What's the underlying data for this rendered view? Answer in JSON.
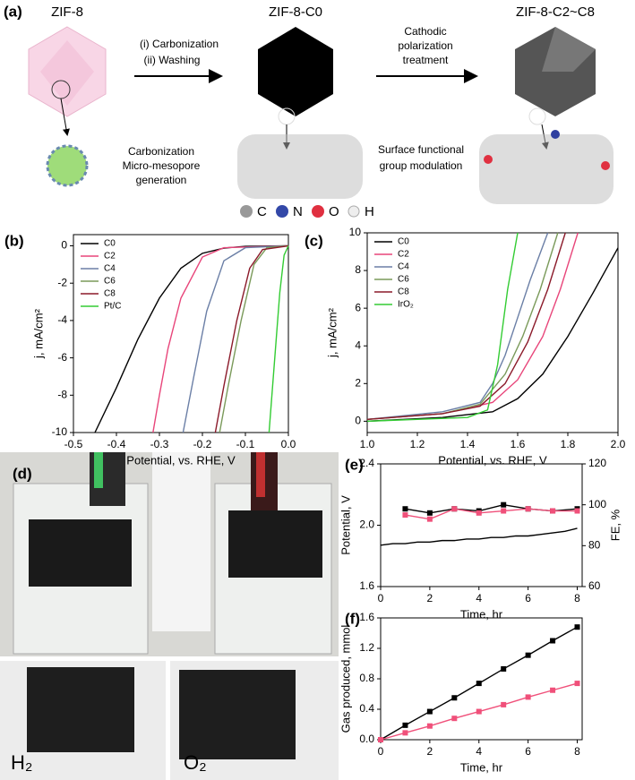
{
  "figure_a": {
    "label": "(a)",
    "stage1": "ZIF-8",
    "stage2": "ZIF-8-C0",
    "stage3": "ZIF-8-C2~C8",
    "step1a": "(i) Carbonization",
    "step1b": "(ii) Washing",
    "step2a": "Cathodic",
    "step2b": "polarization",
    "step2c": "treatment",
    "note1a": "Carbonization",
    "note1b": "Micro-mesopore",
    "note1c": "generation",
    "note2a": "Surface functional",
    "note2b": "group modulation",
    "atoms": [
      "C",
      "N",
      "O",
      "H"
    ]
  },
  "figure_d": {
    "label": "(d)",
    "left": "H₂",
    "right": "O₂"
  },
  "chart_data": [
    {
      "type": "line",
      "label": "(b)",
      "xlabel": "Potential, vs. RHE, V",
      "ylabel": "j, mA/cm²",
      "xlim": [
        -0.5,
        0.0
      ],
      "xticks": [
        -0.5,
        -0.4,
        -0.3,
        -0.2,
        -0.1,
        {
          "value": 0,
          "label": "0.0"
        }
      ],
      "ylim": [
        -10,
        0.6
      ],
      "yticks": [
        0,
        -2,
        -4,
        -6,
        -8,
        -10
      ],
      "legend": "upper left",
      "series": [
        {
          "name": "C0",
          "color": "#000000",
          "x": [
            -0.45,
            -0.4,
            -0.35,
            -0.3,
            -0.25,
            -0.2,
            -0.15,
            -0.1,
            0.0
          ],
          "values": [
            -10,
            -7.6,
            -5.0,
            -2.8,
            -1.2,
            -0.4,
            -0.12,
            -0.03,
            0
          ]
        },
        {
          "name": "C2",
          "color": "#e8457a",
          "x": [
            -0.315,
            -0.3,
            -0.28,
            -0.25,
            -0.2,
            -0.15,
            0.0
          ],
          "values": [
            -10,
            -8,
            -5.5,
            -2.8,
            -0.6,
            -0.1,
            0
          ]
        },
        {
          "name": "C4",
          "color": "#6b7fa6",
          "x": [
            -0.245,
            -0.22,
            -0.19,
            -0.15,
            -0.1,
            0.0
          ],
          "values": [
            -10,
            -7,
            -3.5,
            -0.8,
            -0.1,
            0
          ]
        },
        {
          "name": "C6",
          "color": "#7a9a5a",
          "x": [
            -0.16,
            -0.14,
            -0.11,
            -0.08,
            -0.05,
            0.0
          ],
          "values": [
            -10,
            -7.5,
            -4,
            -1,
            -0.1,
            0
          ]
        },
        {
          "name": "C8",
          "color": "#8b1a2a",
          "x": [
            -0.17,
            -0.15,
            -0.12,
            -0.09,
            -0.06,
            0.0
          ],
          "values": [
            -10,
            -7.5,
            -4,
            -1.2,
            -0.2,
            0
          ]
        },
        {
          "name": "Pt/C",
          "color": "#33cc33",
          "x": [
            -0.045,
            -0.04,
            -0.03,
            -0.02,
            -0.01,
            0.0
          ],
          "values": [
            -10,
            -8.5,
            -5.5,
            -2.5,
            -0.5,
            0
          ]
        }
      ]
    },
    {
      "type": "line",
      "label": "(c)",
      "xlabel": "Potential, vs. RHE, V",
      "ylabel": "j, mA/cm²",
      "xlim": [
        1.0,
        2.0
      ],
      "xticks": [
        {
          "value": 1.0,
          "label": "1.0"
        },
        1.2,
        1.4,
        1.6,
        1.8,
        {
          "value": 2.0,
          "label": "2.0"
        }
      ],
      "ylim": [
        -0.6,
        10
      ],
      "yticks": [
        0,
        2,
        4,
        6,
        8,
        10
      ],
      "legend": "upper left",
      "series": [
        {
          "name": "C0",
          "color": "#000000",
          "x": [
            1.0,
            1.3,
            1.5,
            1.6,
            1.7,
            1.8,
            1.9,
            2.0
          ],
          "values": [
            0,
            0.2,
            0.5,
            1.2,
            2.5,
            4.5,
            6.8,
            9.2
          ]
        },
        {
          "name": "C2",
          "color": "#e8457a",
          "x": [
            1.0,
            1.3,
            1.5,
            1.6,
            1.7,
            1.77,
            1.84
          ],
          "values": [
            0.1,
            0.4,
            1,
            2.2,
            4.5,
            7,
            10
          ]
        },
        {
          "name": "C4",
          "color": "#6b7fa6",
          "x": [
            1.0,
            1.3,
            1.45,
            1.5,
            1.55,
            1.6,
            1.65,
            1.72
          ],
          "values": [
            0.1,
            0.5,
            1,
            2,
            3.5,
            5.5,
            7.5,
            10
          ]
        },
        {
          "name": "C6",
          "color": "#7a9a5a",
          "x": [
            1.0,
            1.3,
            1.45,
            1.55,
            1.62,
            1.69,
            1.76
          ],
          "values": [
            0.1,
            0.4,
            0.9,
            2.5,
            4.5,
            7,
            10
          ]
        },
        {
          "name": "C8",
          "color": "#8b1a2a",
          "x": [
            1.0,
            1.3,
            1.45,
            1.55,
            1.64,
            1.72,
            1.79
          ],
          "values": [
            0.1,
            0.4,
            0.8,
            2,
            4.2,
            7,
            10
          ]
        },
        {
          "name": "IrO₂",
          "color": "#33cc33",
          "x": [
            1.0,
            1.4,
            1.48,
            1.52,
            1.56,
            1.6
          ],
          "values": [
            0,
            0.2,
            0.6,
            3,
            7,
            10
          ]
        }
      ]
    },
    {
      "type": "line",
      "label": "(e)",
      "xlabel": "Time, hr",
      "ylabel": "Potential, V",
      "y2label": "FE, %",
      "xlim": [
        0,
        8.2
      ],
      "xticks": [
        0,
        2,
        4,
        6,
        8
      ],
      "ylim": [
        1.6,
        2.4
      ],
      "yticks": [
        1.6,
        {
          "value": 2.0,
          "label": "2.0"
        },
        2.4
      ],
      "y2lim": [
        60,
        120
      ],
      "y2ticks": [
        60,
        80,
        100,
        120
      ],
      "series": [
        {
          "color": "#000000",
          "x": [
            0,
            0.5,
            1,
            1.5,
            2,
            2.5,
            3,
            3.5,
            4,
            4.5,
            5,
            5.5,
            6,
            6.5,
            7,
            7.5,
            8
          ],
          "values": [
            1.87,
            1.88,
            1.88,
            1.89,
            1.89,
            1.9,
            1.9,
            1.91,
            1.91,
            1.92,
            1.92,
            1.93,
            1.93,
            1.94,
            1.95,
            1.96,
            1.98
          ]
        },
        {
          "color": "#000000",
          "axis": "y2",
          "marker": "square",
          "x": [
            1,
            2,
            3,
            4,
            5,
            6,
            7,
            8
          ],
          "values": [
            98,
            96,
            98,
            97,
            100,
            98,
            97,
            98
          ]
        },
        {
          "color": "#f0507a",
          "axis": "y2",
          "marker": "square",
          "x": [
            1,
            2,
            3,
            4,
            5,
            6,
            7,
            8
          ],
          "values": [
            95,
            93,
            98,
            96,
            97,
            98,
            97,
            97
          ]
        }
      ]
    },
    {
      "type": "line",
      "label": "(f)",
      "xlabel": "Time, hr",
      "ylabel": "Gas produced, mmol",
      "xlim": [
        0,
        8.2
      ],
      "xticks": [
        0,
        2,
        4,
        6,
        8
      ],
      "ylim": [
        0,
        1.6
      ],
      "yticks": [
        {
          "value": 0,
          "label": "0.0"
        },
        0.4,
        0.8,
        1.2,
        1.6
      ],
      "series": [
        {
          "color": "#000000",
          "marker": "square",
          "x": [
            0,
            1,
            2,
            3,
            4,
            5,
            6,
            7,
            8
          ],
          "values": [
            0,
            0.19,
            0.37,
            0.55,
            0.74,
            0.93,
            1.11,
            1.3,
            1.48
          ]
        },
        {
          "color": "#f0507a",
          "marker": "square",
          "x": [
            0,
            1,
            2,
            3,
            4,
            5,
            6,
            7,
            8
          ],
          "values": [
            0,
            0.09,
            0.18,
            0.28,
            0.37,
            0.46,
            0.56,
            0.65,
            0.74
          ]
        }
      ]
    }
  ]
}
